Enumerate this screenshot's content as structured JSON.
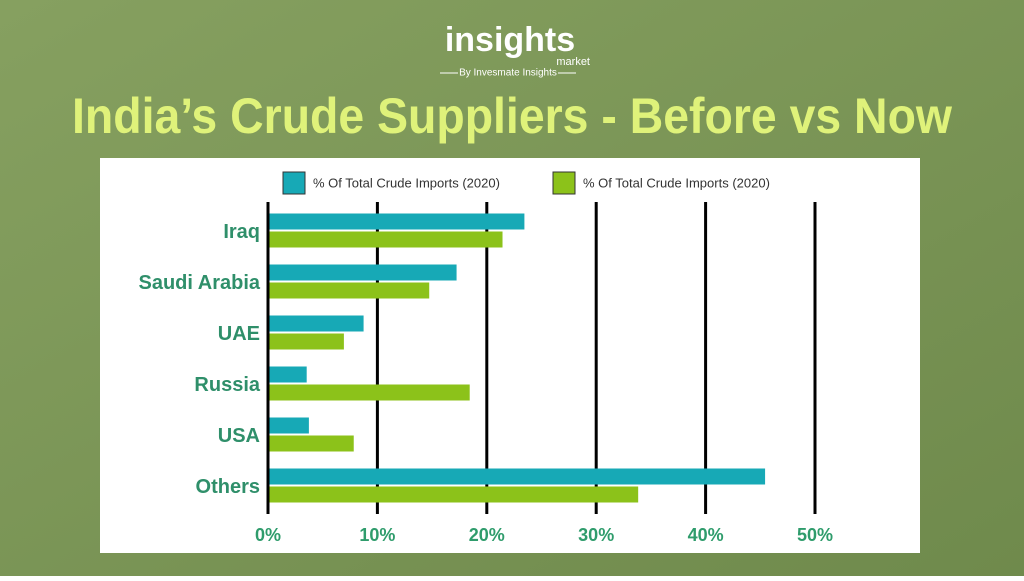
{
  "header": {
    "brand": "insights",
    "brand_sub": "market",
    "byline": "By Invesmate Insights"
  },
  "chart_data": {
    "type": "hbar",
    "title": "India’s Crude Suppliers - Before vs Now",
    "categories": [
      "Iraq",
      "Saudi Arabia",
      "UAE",
      "Russia",
      "USA",
      "Others"
    ],
    "series": [
      {
        "name": "% Of Total Crude Imports (2020)",
        "color": "#17a9b6",
        "values": [
          23.3,
          17.1,
          8.6,
          3.4,
          3.6,
          45.3
        ]
      },
      {
        "name": "% Of Total Crude Imports (2020)",
        "color": "#8cc21a",
        "values": [
          21.3,
          14.6,
          6.8,
          18.3,
          7.7,
          33.7
        ]
      }
    ],
    "xlim": [
      0,
      50
    ],
    "xticks": [
      {
        "value": 0,
        "label": "0%"
      },
      {
        "value": 10,
        "label": "10%"
      },
      {
        "value": 20,
        "label": "20%"
      },
      {
        "value": 30,
        "label": "30%"
      },
      {
        "value": 40,
        "label": "40%"
      },
      {
        "value": 50,
        "label": "50%"
      }
    ],
    "grid": true,
    "legend": "top"
  }
}
